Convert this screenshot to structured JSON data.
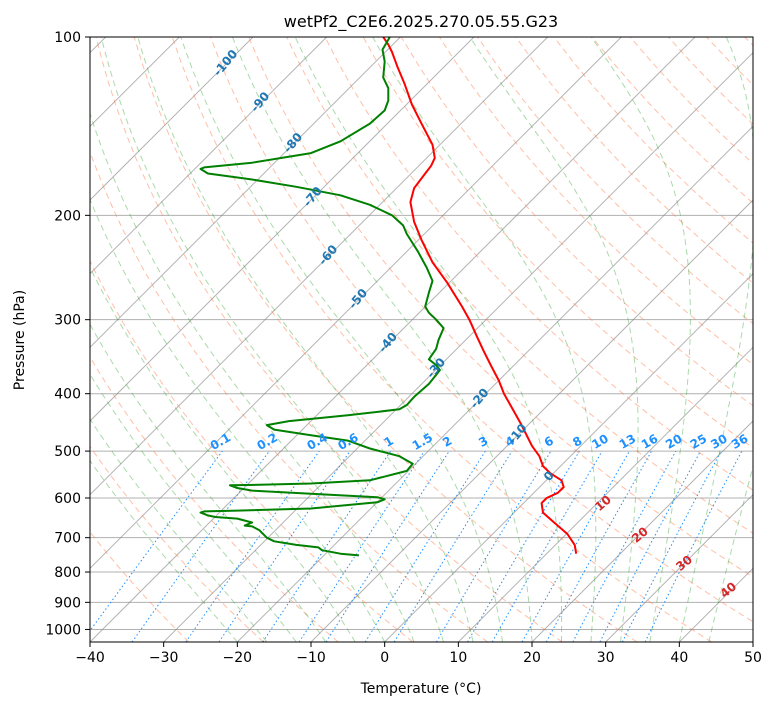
{
  "chart_data": {
    "type": "line",
    "title": "wetPf2_C2E6.2025.270.05.55.G23",
    "xlabel": "Temperature (°C)",
    "ylabel": "Pressure (hPa)",
    "xlim": [
      -40,
      50
    ],
    "ylim": [
      1050,
      100
    ],
    "y_scale": "log",
    "grid": true,
    "x_ticks": [
      "−40",
      "−30",
      "−20",
      "−10",
      "0",
      "10",
      "20",
      "30",
      "40",
      "50"
    ],
    "y_ticks": [
      "100",
      "200",
      "300",
      "400",
      "500",
      "600",
      "700",
      "800",
      "900",
      "1000"
    ],
    "dry_adiabat_labels": [
      "-100",
      "-90",
      "-80",
      "-70",
      "-60",
      "-50",
      "-40",
      "-30",
      "-20",
      "-10",
      "0"
    ],
    "moist_adiabat_labels": [
      "10",
      "20",
      "30",
      "40"
    ],
    "mixing_ratio_labels": [
      "0.1",
      "0.2",
      "0.4",
      "0.6",
      "1",
      "1.5",
      "2",
      "3",
      "4",
      "6",
      "8",
      "10",
      "13",
      "16",
      "20",
      "25",
      "30",
      "36"
    ],
    "series": [
      {
        "color": "#ff0000",
        "points": [
          [
            26,
            745
          ],
          [
            25.8,
            720
          ],
          [
            24.8,
            690
          ],
          [
            23,
            660
          ],
          [
            21.5,
            635
          ],
          [
            21.3,
            612
          ],
          [
            22,
            600
          ],
          [
            23.5,
            588
          ],
          [
            24.3,
            575
          ],
          [
            24,
            560
          ],
          [
            22.5,
            545
          ],
          [
            21.5,
            530
          ],
          [
            21,
            510
          ],
          [
            20,
            490
          ],
          [
            18.5,
            450
          ],
          [
            16.2,
            400
          ],
          [
            15.5,
            380
          ],
          [
            14.5,
            360
          ],
          [
            13.5,
            340
          ],
          [
            12.5,
            320
          ],
          [
            11.5,
            300
          ],
          [
            10.5,
            285
          ],
          [
            8.5,
            260
          ],
          [
            6.5,
            240
          ],
          [
            5,
            220
          ],
          [
            4,
            205
          ],
          [
            3.5,
            190
          ],
          [
            4,
            180
          ],
          [
            5.5,
            170
          ],
          [
            6.3,
            165
          ],
          [
            6.8,
            160
          ],
          [
            6.5,
            152
          ],
          [
            5,
            140
          ],
          [
            3.7,
            130
          ],
          [
            2.7,
            120
          ],
          [
            1.7,
            112
          ],
          [
            1,
            106
          ],
          [
            0.5,
            103
          ],
          [
            -0.2,
            100
          ]
        ]
      },
      {
        "color": "#008000",
        "points": [
          [
            -3.5,
            750
          ],
          [
            -6,
            745
          ],
          [
            -8.5,
            735
          ],
          [
            -9,
            727
          ],
          [
            -12,
            720
          ],
          [
            -15,
            710
          ],
          [
            -16,
            700
          ],
          [
            -17,
            680
          ],
          [
            -18,
            670
          ],
          [
            -19,
            668
          ],
          [
            -18,
            660
          ],
          [
            -20,
            650
          ],
          [
            -23,
            646
          ],
          [
            -24,
            642
          ],
          [
            -25,
            635
          ],
          [
            -24.5,
            632
          ],
          [
            -20,
            630
          ],
          [
            -10,
            625
          ],
          [
            -1,
            610
          ],
          [
            0,
            603
          ],
          [
            -1,
            598
          ],
          [
            -10,
            590
          ],
          [
            -18,
            583
          ],
          [
            -20,
            577
          ],
          [
            -21,
            571
          ],
          [
            -17,
            570
          ],
          [
            -10,
            567
          ],
          [
            -2,
            560
          ],
          [
            3,
            540
          ],
          [
            3.8,
            525
          ],
          [
            2,
            510
          ],
          [
            -2,
            495
          ],
          [
            -5,
            480
          ],
          [
            -10,
            470
          ],
          [
            -15,
            460
          ],
          [
            -16,
            452
          ],
          [
            -13,
            445
          ],
          [
            -5,
            435
          ],
          [
            2,
            425
          ],
          [
            3,
            418
          ],
          [
            4,
            405
          ],
          [
            6,
            385
          ],
          [
            7.5,
            365
          ],
          [
            7,
            358
          ],
          [
            6,
            350
          ],
          [
            7,
            336
          ],
          [
            7.3,
            325
          ],
          [
            8,
            310
          ],
          [
            7,
            300
          ],
          [
            6,
            292
          ],
          [
            5.5,
            285
          ],
          [
            6,
            270
          ],
          [
            6.5,
            258
          ],
          [
            5.7,
            245
          ],
          [
            4.5,
            230
          ],
          [
            3,
            215
          ],
          [
            2.5,
            208
          ],
          [
            1,
            200
          ],
          [
            -2,
            192
          ],
          [
            -6,
            185
          ],
          [
            -12,
            179
          ],
          [
            -18,
            174
          ],
          [
            -24,
            170
          ],
          [
            -25,
            167
          ],
          [
            -24.5,
            166
          ],
          [
            -18,
            163
          ],
          [
            -10,
            157
          ],
          [
            -6,
            150
          ],
          [
            -2,
            140
          ],
          [
            0,
            133
          ],
          [
            0.5,
            128
          ],
          [
            0.5,
            122
          ],
          [
            -0.2,
            117
          ],
          [
            0,
            110
          ],
          [
            -0.3,
            105
          ],
          [
            0.3,
            102
          ],
          [
            0.7,
            100
          ]
        ]
      }
    ]
  },
  "colors": {
    "temperature": "#ff0000",
    "dewpoint": "#008000",
    "dry_adiabats": "#ff7f50",
    "moist_adiabats": "#2ca02c",
    "mixing_ratio": "#1e90ff",
    "isotherms": "#808080",
    "grid": "#b0b0b0"
  }
}
